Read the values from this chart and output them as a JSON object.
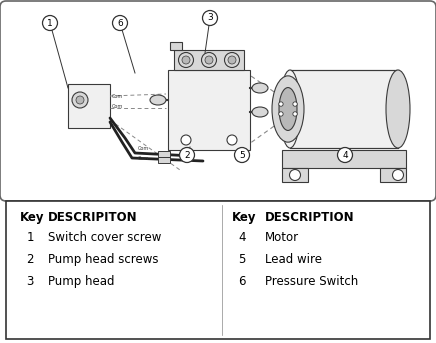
{
  "background_color": "#ffffff",
  "diagram_box_edge": "#666666",
  "table_box_edge": "#333333",
  "legend_left": {
    "header_key": "Key",
    "header_desc": "DESCRIPITON",
    "rows": [
      {
        "key": "1",
        "desc": "Switch cover screw"
      },
      {
        "key": "2",
        "desc": "Pump head screws"
      },
      {
        "key": "3",
        "desc": "Pump head"
      }
    ]
  },
  "legend_right": {
    "header_key": "Key",
    "header_desc": "DESCRIPTION",
    "rows": [
      {
        "key": "4",
        "desc": "Motor"
      },
      {
        "key": "5",
        "desc": "Lead wire"
      },
      {
        "key": "6",
        "desc": "Pressure Switch"
      }
    ]
  },
  "fig_width": 4.36,
  "fig_height": 3.43,
  "dpi": 100
}
